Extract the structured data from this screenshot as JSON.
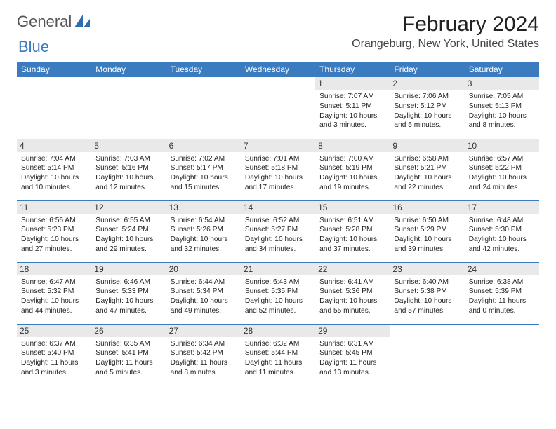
{
  "brand": {
    "name1": "General",
    "name2": "Blue"
  },
  "title": "February 2024",
  "location": "Orangeburg, New York, United States",
  "colors": {
    "header_bg": "#3b7bbf",
    "header_text": "#ffffff",
    "daynum_bg": "#e9e9e9",
    "border": "#3b7bbf",
    "text": "#222222"
  },
  "dayNames": [
    "Sunday",
    "Monday",
    "Tuesday",
    "Wednesday",
    "Thursday",
    "Friday",
    "Saturday"
  ],
  "weeks": [
    [
      null,
      null,
      null,
      null,
      {
        "n": "1",
        "sunrise": "Sunrise: 7:07 AM",
        "sunset": "Sunset: 5:11 PM",
        "daylight": "Daylight: 10 hours and 3 minutes."
      },
      {
        "n": "2",
        "sunrise": "Sunrise: 7:06 AM",
        "sunset": "Sunset: 5:12 PM",
        "daylight": "Daylight: 10 hours and 5 minutes."
      },
      {
        "n": "3",
        "sunrise": "Sunrise: 7:05 AM",
        "sunset": "Sunset: 5:13 PM",
        "daylight": "Daylight: 10 hours and 8 minutes."
      }
    ],
    [
      {
        "n": "4",
        "sunrise": "Sunrise: 7:04 AM",
        "sunset": "Sunset: 5:14 PM",
        "daylight": "Daylight: 10 hours and 10 minutes."
      },
      {
        "n": "5",
        "sunrise": "Sunrise: 7:03 AM",
        "sunset": "Sunset: 5:16 PM",
        "daylight": "Daylight: 10 hours and 12 minutes."
      },
      {
        "n": "6",
        "sunrise": "Sunrise: 7:02 AM",
        "sunset": "Sunset: 5:17 PM",
        "daylight": "Daylight: 10 hours and 15 minutes."
      },
      {
        "n": "7",
        "sunrise": "Sunrise: 7:01 AM",
        "sunset": "Sunset: 5:18 PM",
        "daylight": "Daylight: 10 hours and 17 minutes."
      },
      {
        "n": "8",
        "sunrise": "Sunrise: 7:00 AM",
        "sunset": "Sunset: 5:19 PM",
        "daylight": "Daylight: 10 hours and 19 minutes."
      },
      {
        "n": "9",
        "sunrise": "Sunrise: 6:58 AM",
        "sunset": "Sunset: 5:21 PM",
        "daylight": "Daylight: 10 hours and 22 minutes."
      },
      {
        "n": "10",
        "sunrise": "Sunrise: 6:57 AM",
        "sunset": "Sunset: 5:22 PM",
        "daylight": "Daylight: 10 hours and 24 minutes."
      }
    ],
    [
      {
        "n": "11",
        "sunrise": "Sunrise: 6:56 AM",
        "sunset": "Sunset: 5:23 PM",
        "daylight": "Daylight: 10 hours and 27 minutes."
      },
      {
        "n": "12",
        "sunrise": "Sunrise: 6:55 AM",
        "sunset": "Sunset: 5:24 PM",
        "daylight": "Daylight: 10 hours and 29 minutes."
      },
      {
        "n": "13",
        "sunrise": "Sunrise: 6:54 AM",
        "sunset": "Sunset: 5:26 PM",
        "daylight": "Daylight: 10 hours and 32 minutes."
      },
      {
        "n": "14",
        "sunrise": "Sunrise: 6:52 AM",
        "sunset": "Sunset: 5:27 PM",
        "daylight": "Daylight: 10 hours and 34 minutes."
      },
      {
        "n": "15",
        "sunrise": "Sunrise: 6:51 AM",
        "sunset": "Sunset: 5:28 PM",
        "daylight": "Daylight: 10 hours and 37 minutes."
      },
      {
        "n": "16",
        "sunrise": "Sunrise: 6:50 AM",
        "sunset": "Sunset: 5:29 PM",
        "daylight": "Daylight: 10 hours and 39 minutes."
      },
      {
        "n": "17",
        "sunrise": "Sunrise: 6:48 AM",
        "sunset": "Sunset: 5:30 PM",
        "daylight": "Daylight: 10 hours and 42 minutes."
      }
    ],
    [
      {
        "n": "18",
        "sunrise": "Sunrise: 6:47 AM",
        "sunset": "Sunset: 5:32 PM",
        "daylight": "Daylight: 10 hours and 44 minutes."
      },
      {
        "n": "19",
        "sunrise": "Sunrise: 6:46 AM",
        "sunset": "Sunset: 5:33 PM",
        "daylight": "Daylight: 10 hours and 47 minutes."
      },
      {
        "n": "20",
        "sunrise": "Sunrise: 6:44 AM",
        "sunset": "Sunset: 5:34 PM",
        "daylight": "Daylight: 10 hours and 49 minutes."
      },
      {
        "n": "21",
        "sunrise": "Sunrise: 6:43 AM",
        "sunset": "Sunset: 5:35 PM",
        "daylight": "Daylight: 10 hours and 52 minutes."
      },
      {
        "n": "22",
        "sunrise": "Sunrise: 6:41 AM",
        "sunset": "Sunset: 5:36 PM",
        "daylight": "Daylight: 10 hours and 55 minutes."
      },
      {
        "n": "23",
        "sunrise": "Sunrise: 6:40 AM",
        "sunset": "Sunset: 5:38 PM",
        "daylight": "Daylight: 10 hours and 57 minutes."
      },
      {
        "n": "24",
        "sunrise": "Sunrise: 6:38 AM",
        "sunset": "Sunset: 5:39 PM",
        "daylight": "Daylight: 11 hours and 0 minutes."
      }
    ],
    [
      {
        "n": "25",
        "sunrise": "Sunrise: 6:37 AM",
        "sunset": "Sunset: 5:40 PM",
        "daylight": "Daylight: 11 hours and 3 minutes."
      },
      {
        "n": "26",
        "sunrise": "Sunrise: 6:35 AM",
        "sunset": "Sunset: 5:41 PM",
        "daylight": "Daylight: 11 hours and 5 minutes."
      },
      {
        "n": "27",
        "sunrise": "Sunrise: 6:34 AM",
        "sunset": "Sunset: 5:42 PM",
        "daylight": "Daylight: 11 hours and 8 minutes."
      },
      {
        "n": "28",
        "sunrise": "Sunrise: 6:32 AM",
        "sunset": "Sunset: 5:44 PM",
        "daylight": "Daylight: 11 hours and 11 minutes."
      },
      {
        "n": "29",
        "sunrise": "Sunrise: 6:31 AM",
        "sunset": "Sunset: 5:45 PM",
        "daylight": "Daylight: 11 hours and 13 minutes."
      },
      null,
      null
    ]
  ]
}
